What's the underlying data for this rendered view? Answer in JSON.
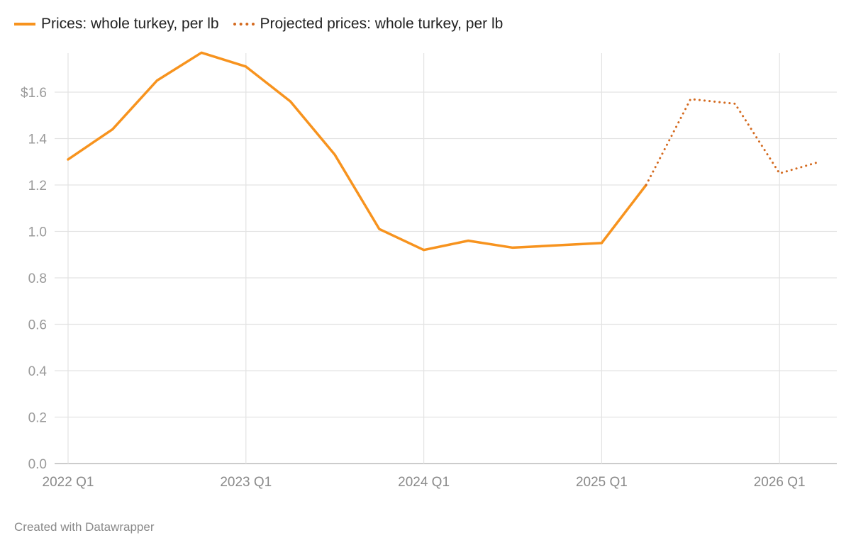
{
  "chart_data": {
    "type": "line",
    "title": "",
    "xlabel": "",
    "ylabel": "",
    "ylim": [
      0,
      1.6
    ],
    "yticks": [
      "0.0",
      "0.2",
      "0.4",
      "0.6",
      "0.8",
      "1.0",
      "1.2",
      "1.4",
      "$1.6"
    ],
    "ytick_values": [
      0,
      0.2,
      0.4,
      0.6,
      0.8,
      1.0,
      1.2,
      1.4,
      1.6
    ],
    "xticks": [
      "2022 Q1",
      "2023 Q1",
      "2024 Q1",
      "2025 Q1",
      "2026 Q1"
    ],
    "grid": true,
    "legend_position": "top-left",
    "series": [
      {
        "name": "Prices: whole turkey, per lb",
        "color": "#f7931e",
        "style": "solid",
        "x": [
          "2022 Q1",
          "2022 Q2",
          "2022 Q3",
          "2022 Q4",
          "2023 Q1",
          "2023 Q2",
          "2023 Q3",
          "2023 Q4",
          "2024 Q1",
          "2024 Q2",
          "2024 Q3",
          "2024 Q4",
          "2025 Q1",
          "2025 Q2"
        ],
        "values": [
          1.31,
          1.44,
          1.65,
          1.77,
          1.71,
          1.56,
          1.33,
          1.01,
          0.92,
          0.96,
          0.93,
          0.94,
          0.95,
          1.2
        ]
      },
      {
        "name": "Projected prices: whole turkey, per lb",
        "color": "#d46a1f",
        "style": "dotted",
        "x": [
          "2025 Q2",
          "2025 Q3",
          "2025 Q4",
          "2026 Q1",
          "2026 Q2"
        ],
        "values": [
          1.2,
          1.57,
          1.55,
          1.25,
          1.3
        ]
      }
    ]
  },
  "footer": "Created with Datawrapper"
}
